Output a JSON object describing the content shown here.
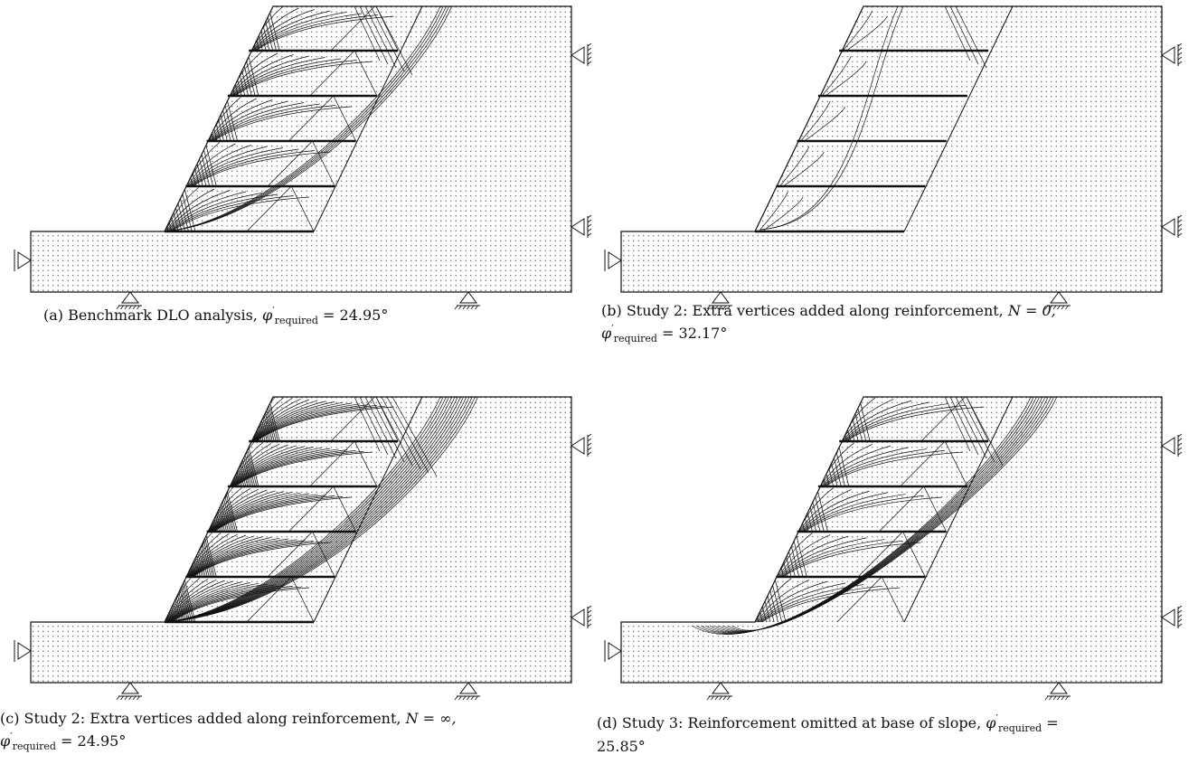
{
  "figure": {
    "panels": [
      {
        "id": "a",
        "label": "(a)",
        "description_text": "Benchmark DLO analysis,",
        "symbol": "φ",
        "prime": "′",
        "subscript": "required",
        "value_text": "= 24.95°",
        "extra_text": "",
        "reinforcement_rows": [
          true,
          true,
          true,
          true,
          true
        ],
        "failure_density": "medium"
      },
      {
        "id": "b",
        "label": "(b)",
        "description_text": "Study 2: Extra vertices added along reinforcement,",
        "n_text": "N = 0,",
        "symbol": "φ",
        "prime": "′",
        "subscript": "required",
        "value_text": "= 32.17°",
        "reinforcement_rows": [
          true,
          true,
          true,
          true,
          true
        ],
        "failure_density": "sparse"
      },
      {
        "id": "c",
        "label": "(c)",
        "description_text": "Study 2: Extra vertices added along reinforcement,",
        "n_text": "N = ∞,",
        "symbol": "φ",
        "prime": "′",
        "subscript": "required",
        "value_text": "= 24.95°",
        "reinforcement_rows": [
          true,
          true,
          true,
          true,
          true
        ],
        "failure_density": "dense"
      },
      {
        "id": "d",
        "label": "(d)",
        "description_text": "Study 3: Reinforcement omitted at base of slope,",
        "symbol": "φ",
        "prime": "′",
        "subscript": "required",
        "value_text": "=",
        "value_text_line2": "25.85°",
        "reinforcement_rows": [
          false,
          true,
          true,
          true,
          true
        ],
        "failure_density": "deep"
      }
    ]
  }
}
